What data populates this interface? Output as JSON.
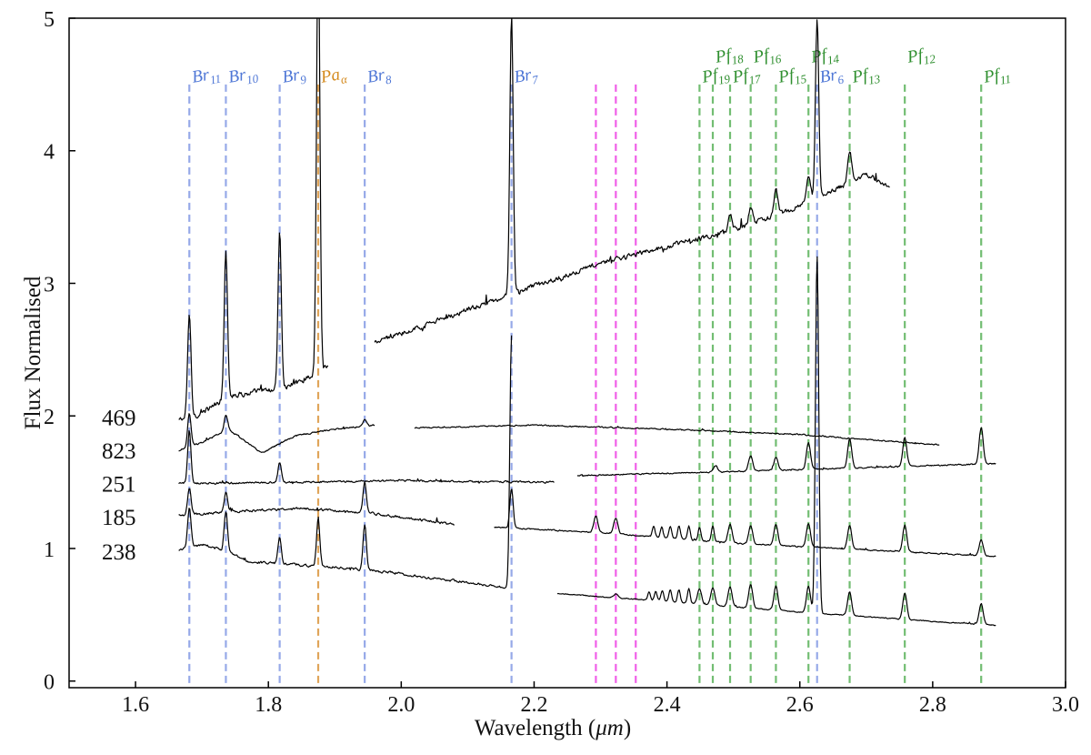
{
  "chart_data": {
    "type": "line",
    "title": "",
    "xlabel": "Wavelength (μm)",
    "xlabel_main": "Wavelength (",
    "xlabel_unit": "μm",
    "xlabel_close": ")",
    "ylabel": "Flux Normalised",
    "xlim": [
      1.5,
      3.0
    ],
    "ylim": [
      -0.05,
      5.0
    ],
    "xticks": [
      1.6,
      1.8,
      2.0,
      2.2,
      2.4,
      2.6,
      2.8,
      3.0
    ],
    "xtick_labels": [
      "1.6",
      "1.8",
      "2.0",
      "2.2",
      "2.4",
      "2.6",
      "2.8",
      "3.0"
    ],
    "yticks": [
      0,
      1,
      2,
      3,
      4,
      5
    ],
    "ytick_labels": [
      "0",
      "1",
      "2",
      "3",
      "4",
      "5"
    ],
    "colors": {
      "brackett": "#4f77d6",
      "brackett_line": "#96a9e8",
      "paschen": "#d48a1e",
      "paschen_line": "#e0a55a",
      "pfund": "#2f8f2f",
      "pfund_line": "#72bd72",
      "magenta": "#f05fe8",
      "spectrum": "#000000",
      "label_text": "#111111"
    },
    "series_labels": [
      {
        "text": "469",
        "y": 1.99
      },
      {
        "text": "823",
        "y": 1.74
      },
      {
        "text": "251",
        "y": 1.49
      },
      {
        "text": "185",
        "y": 1.24
      },
      {
        "text": "238",
        "y": 0.98
      }
    ],
    "reference_lines": [
      {
        "family": "brackett",
        "sym": "Br",
        "sub": "11",
        "x": 1.681
      },
      {
        "family": "brackett",
        "sym": "Br",
        "sub": "10",
        "x": 1.736
      },
      {
        "family": "brackett",
        "sym": "Br",
        "sub": "9",
        "x": 1.817
      },
      {
        "family": "paschen",
        "sym": "Pa",
        "sub": "α",
        "x": 1.875
      },
      {
        "family": "brackett",
        "sym": "Br",
        "sub": "8",
        "x": 1.945
      },
      {
        "family": "brackett",
        "sym": "Br",
        "sub": "7",
        "x": 2.166
      },
      {
        "family": "pfund",
        "sym": "Pf",
        "sub": "19",
        "x": 2.449
      },
      {
        "family": "pfund",
        "sym": "Pf",
        "sub": "18",
        "x": 2.469
      },
      {
        "family": "pfund",
        "sym": "Pf",
        "sub": "17",
        "x": 2.495
      },
      {
        "family": "pfund",
        "sym": "Pf",
        "sub": "16",
        "x": 2.526
      },
      {
        "family": "pfund",
        "sym": "Pf",
        "sub": "15",
        "x": 2.564
      },
      {
        "family": "pfund",
        "sym": "Pf",
        "sub": "14",
        "x": 2.613
      },
      {
        "family": "brackett",
        "sym": "Br",
        "sub": "6",
        "x": 2.626
      },
      {
        "family": "pfund",
        "sym": "Pf",
        "sub": "13",
        "x": 2.675
      },
      {
        "family": "pfund",
        "sym": "Pf",
        "sub": "12",
        "x": 2.758
      },
      {
        "family": "pfund",
        "sym": "Pf",
        "sub": "11",
        "x": 2.873
      }
    ],
    "magenta_lines": [
      2.293,
      2.323,
      2.353
    ],
    "spectra": [
      {
        "name": "469",
        "segments": [
          {
            "x0": 1.665,
            "x1": 1.89,
            "y0": 1.97,
            "y1": 2.35,
            "noise": 0.035,
            "shape": [
              [
                1.665,
                1.97
              ],
              [
                1.7,
                2.02
              ],
              [
                1.74,
                2.15
              ],
              [
                1.78,
                2.18
              ],
              [
                1.82,
                2.2
              ],
              [
                1.85,
                2.27
              ],
              [
                1.89,
                2.37
              ]
            ]
          },
          {
            "x0": 1.96,
            "x1": 2.735,
            "y0": 2.55,
            "y1": 3.73,
            "noise": 0.03,
            "shape": [
              [
                1.96,
                2.55
              ],
              [
                2.1,
                2.8
              ],
              [
                2.2,
                2.98
              ],
              [
                2.3,
                3.15
              ],
              [
                2.4,
                3.28
              ],
              [
                2.5,
                3.4
              ],
              [
                2.6,
                3.58
              ],
              [
                2.7,
                3.82
              ],
              [
                2.735,
                3.73
              ]
            ]
          }
        ],
        "lines": [
          {
            "x": 1.681,
            "h": 0.78,
            "w": 0.0025
          },
          {
            "x": 1.736,
            "h": 1.12,
            "w": 0.0025
          },
          {
            "x": 1.817,
            "h": 1.2,
            "w": 0.0025
          },
          {
            "x": 1.875,
            "h": 3.3,
            "w": 0.0025
          },
          {
            "x": 2.166,
            "h": 2.1,
            "w": 0.0025
          },
          {
            "x": 2.626,
            "h": 1.35,
            "w": 0.0025
          },
          {
            "x": 2.495,
            "h": 0.12,
            "w": 0.003
          },
          {
            "x": 2.526,
            "h": 0.12,
            "w": 0.003
          },
          {
            "x": 2.564,
            "h": 0.18,
            "w": 0.003
          },
          {
            "x": 2.613,
            "h": 0.22,
            "w": 0.003
          },
          {
            "x": 2.675,
            "h": 0.25,
            "w": 0.003
          }
        ]
      },
      {
        "name": "823",
        "segments": [
          {
            "x0": 1.665,
            "x1": 1.96,
            "y0": 1.74,
            "y1": 1.93,
            "noise": 0.01,
            "shape": [
              [
                1.665,
                1.74
              ],
              [
                1.7,
                1.8
              ],
              [
                1.74,
                1.9
              ],
              [
                1.79,
                1.72
              ],
              [
                1.84,
                1.85
              ],
              [
                1.9,
                1.9
              ],
              [
                1.96,
                1.93
              ]
            ]
          },
          {
            "x0": 2.02,
            "x1": 2.81,
            "y0": 1.91,
            "y1": 1.78,
            "noise": 0.008,
            "shape": [
              [
                2.02,
                1.91
              ],
              [
                2.2,
                1.93
              ],
              [
                2.4,
                1.9
              ],
              [
                2.6,
                1.86
              ],
              [
                2.81,
                1.78
              ]
            ]
          }
        ],
        "lines": [
          {
            "x": 1.681,
            "h": 0.25,
            "w": 0.0025
          },
          {
            "x": 1.736,
            "h": 0.12,
            "w": 0.0025
          },
          {
            "x": 1.945,
            "h": 0.05,
            "w": 0.0025
          }
        ]
      },
      {
        "name": "251",
        "segments": [
          {
            "x0": 1.665,
            "x1": 2.23,
            "y0": 1.49,
            "y1": 1.5,
            "noise": 0.012,
            "shape": [
              [
                1.665,
                1.49
              ],
              [
                2.0,
                1.51
              ],
              [
                2.23,
                1.5
              ]
            ]
          },
          {
            "x0": 2.265,
            "x1": 2.895,
            "y0": 1.55,
            "y1": 1.64,
            "noise": 0.008,
            "shape": [
              [
                2.265,
                1.55
              ],
              [
                2.5,
                1.58
              ],
              [
                2.7,
                1.61
              ],
              [
                2.895,
                1.64
              ]
            ]
          }
        ],
        "lines": [
          {
            "x": 1.681,
            "h": 0.4,
            "w": 0.0025
          },
          {
            "x": 1.817,
            "h": 0.15,
            "w": 0.0025
          },
          {
            "x": 2.473,
            "h": 0.05,
            "w": 0.003
          },
          {
            "x": 2.526,
            "h": 0.12,
            "w": 0.003
          },
          {
            "x": 2.564,
            "h": 0.1,
            "w": 0.003
          },
          {
            "x": 2.613,
            "h": 0.2,
            "w": 0.003
          },
          {
            "x": 2.675,
            "h": 0.22,
            "w": 0.003
          },
          {
            "x": 2.758,
            "h": 0.22,
            "w": 0.003
          },
          {
            "x": 2.873,
            "h": 0.28,
            "w": 0.003
          }
        ]
      },
      {
        "name": "185",
        "segments": [
          {
            "x0": 1.665,
            "x1": 2.08,
            "y0": 1.25,
            "y1": 1.18,
            "noise": 0.015,
            "shape": [
              [
                1.665,
                1.25
              ],
              [
                1.75,
                1.28
              ],
              [
                1.85,
                1.3
              ],
              [
                1.95,
                1.27
              ],
              [
                2.08,
                1.18
              ]
            ]
          },
          {
            "x0": 2.14,
            "x1": 2.895,
            "y0": 1.16,
            "y1": 0.94,
            "noise": 0.008,
            "shape": [
              [
                2.14,
                1.16
              ],
              [
                2.3,
                1.12
              ],
              [
                2.5,
                1.04
              ],
              [
                2.7,
                0.99
              ],
              [
                2.895,
                0.94
              ]
            ]
          }
        ],
        "lines": [
          {
            "x": 1.681,
            "h": 0.2,
            "w": 0.0025
          },
          {
            "x": 1.736,
            "h": 0.15,
            "w": 0.0025
          },
          {
            "x": 1.945,
            "h": 0.22,
            "w": 0.0025
          },
          {
            "x": 2.166,
            "h": 0.3,
            "w": 0.0025
          },
          {
            "x": 2.293,
            "h": 0.12,
            "w": 0.003
          },
          {
            "x": 2.323,
            "h": 0.12,
            "w": 0.003
          },
          {
            "x": 2.38,
            "h": 0.08,
            "w": 0.002
          },
          {
            "x": 2.392,
            "h": 0.08,
            "w": 0.002
          },
          {
            "x": 2.405,
            "h": 0.09,
            "w": 0.002
          },
          {
            "x": 2.418,
            "h": 0.1,
            "w": 0.002
          },
          {
            "x": 2.433,
            "h": 0.1,
            "w": 0.002
          },
          {
            "x": 2.449,
            "h": 0.1,
            "w": 0.002
          },
          {
            "x": 2.469,
            "h": 0.12,
            "w": 0.002
          },
          {
            "x": 2.495,
            "h": 0.14,
            "w": 0.003
          },
          {
            "x": 2.526,
            "h": 0.14,
            "w": 0.003
          },
          {
            "x": 2.564,
            "h": 0.16,
            "w": 0.003
          },
          {
            "x": 2.613,
            "h": 0.18,
            "w": 0.003
          },
          {
            "x": 2.675,
            "h": 0.18,
            "w": 0.003
          },
          {
            "x": 2.758,
            "h": 0.2,
            "w": 0.003
          },
          {
            "x": 2.873,
            "h": 0.12,
            "w": 0.003
          }
        ]
      },
      {
        "name": "238",
        "segments": [
          {
            "x0": 1.665,
            "x1": 2.166,
            "y0": 0.99,
            "y1": 0.7,
            "noise": 0.015,
            "shape": [
              [
                1.665,
                0.99
              ],
              [
                1.7,
                1.03
              ],
              [
                1.736,
                0.98
              ],
              [
                1.77,
                0.9
              ],
              [
                1.9,
                0.86
              ],
              [
                2.0,
                0.81
              ],
              [
                2.166,
                0.7
              ]
            ]
          },
          {
            "x0": 2.235,
            "x1": 2.895,
            "y0": 0.66,
            "y1": 0.42,
            "noise": 0.006,
            "shape": [
              [
                2.235,
                0.66
              ],
              [
                2.4,
                0.6
              ],
              [
                2.6,
                0.52
              ],
              [
                2.8,
                0.45
              ],
              [
                2.895,
                0.42
              ]
            ]
          }
        ],
        "lines": [
          {
            "x": 1.681,
            "h": 0.3,
            "w": 0.0025
          },
          {
            "x": 1.736,
            "h": 0.3,
            "w": 0.0025
          },
          {
            "x": 1.817,
            "h": 0.2,
            "w": 0.0025
          },
          {
            "x": 1.875,
            "h": 0.35,
            "w": 0.0025
          },
          {
            "x": 1.945,
            "h": 0.35,
            "w": 0.0025
          },
          {
            "x": 2.166,
            "h": 1.9,
            "w": 0.0025
          },
          {
            "x": 2.323,
            "h": 0.03,
            "w": 0.003
          },
          {
            "x": 2.373,
            "h": 0.06,
            "w": 0.002
          },
          {
            "x": 2.383,
            "h": 0.07,
            "w": 0.002
          },
          {
            "x": 2.393,
            "h": 0.08,
            "w": 0.002
          },
          {
            "x": 2.405,
            "h": 0.09,
            "w": 0.002
          },
          {
            "x": 2.418,
            "h": 0.1,
            "w": 0.002
          },
          {
            "x": 2.433,
            "h": 0.11,
            "w": 0.002
          },
          {
            "x": 2.449,
            "h": 0.12,
            "w": 0.003
          },
          {
            "x": 2.469,
            "h": 0.13,
            "w": 0.003
          },
          {
            "x": 2.495,
            "h": 0.15,
            "w": 0.003
          },
          {
            "x": 2.526,
            "h": 0.18,
            "w": 0.003
          },
          {
            "x": 2.564,
            "h": 0.18,
            "w": 0.003
          },
          {
            "x": 2.613,
            "h": 0.2,
            "w": 0.003
          },
          {
            "x": 2.626,
            "h": 2.7,
            "w": 0.0025
          },
          {
            "x": 2.675,
            "h": 0.18,
            "w": 0.003
          },
          {
            "x": 2.758,
            "h": 0.2,
            "w": 0.003
          },
          {
            "x": 2.873,
            "h": 0.16,
            "w": 0.003
          }
        ]
      }
    ]
  }
}
